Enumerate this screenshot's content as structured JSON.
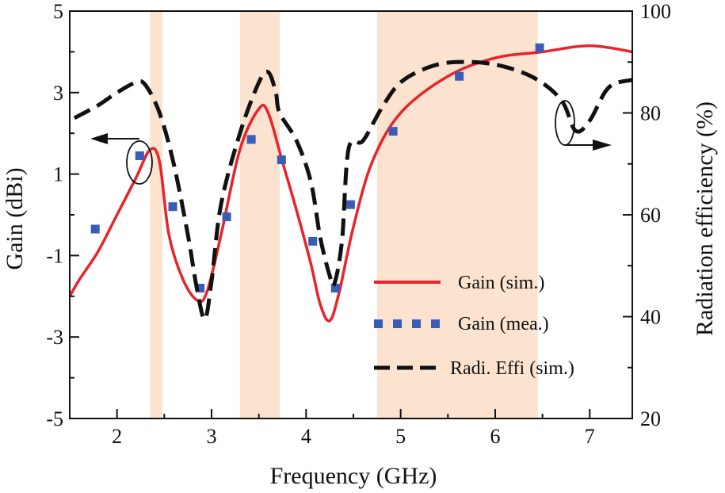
{
  "chart_data": {
    "type": "line",
    "title": "",
    "xlabel": "Frequency (GHz)",
    "ylabel": "Gain (dBi)",
    "y2label": "Radiation efficiency (%)",
    "xlim": [
      1.5,
      7.45
    ],
    "ylim": [
      -5,
      5
    ],
    "y2lim": [
      20,
      100
    ],
    "xticks": [
      "2",
      "3",
      "4",
      "5",
      "6",
      "7"
    ],
    "yticks": [
      "-5",
      "-3",
      "-1",
      "1",
      "3",
      "5"
    ],
    "y2ticks": [
      "20",
      "40",
      "60",
      "80",
      "100"
    ],
    "bands": [
      [
        2.35,
        2.48
      ],
      [
        3.3,
        3.72
      ],
      [
        4.75,
        6.45
      ]
    ],
    "band_color": "#fbe3cf",
    "series": [
      {
        "name": "Gain (sim.)",
        "axis": "left",
        "style": "solid",
        "color": "#e8232a",
        "x": [
          1.5,
          1.6,
          1.8,
          2.0,
          2.2,
          2.35,
          2.45,
          2.55,
          2.7,
          2.85,
          2.95,
          3.1,
          3.3,
          3.5,
          3.6,
          3.75,
          3.9,
          4.05,
          4.15,
          4.25,
          4.35,
          4.5,
          4.7,
          5.0,
          5.5,
          6.0,
          6.5,
          7.0,
          7.45
        ],
        "y": [
          -2.0,
          -1.6,
          -0.9,
          0.0,
          0.9,
          1.6,
          1.3,
          -0.5,
          -1.6,
          -2.1,
          -1.9,
          -0.5,
          1.6,
          2.6,
          2.5,
          1.3,
          0.1,
          -1.2,
          -2.2,
          -2.6,
          -1.9,
          -0.3,
          1.3,
          2.5,
          3.4,
          3.85,
          4.0,
          4.15,
          4.0
        ]
      },
      {
        "name": "Gain (mea.)",
        "axis": "left",
        "style": "square",
        "color": "#3b5bb8",
        "x": [
          1.77,
          2.24,
          2.59,
          2.88,
          3.16,
          3.42,
          3.74,
          4.07,
          4.31,
          4.47,
          4.92,
          5.62,
          6.47
        ],
        "y": [
          -0.35,
          1.45,
          0.2,
          -1.8,
          -0.05,
          1.85,
          1.35,
          -0.65,
          -1.8,
          0.25,
          2.05,
          3.4,
          4.1
        ]
      },
      {
        "name": "Radi. Effi (sim.)",
        "axis": "right",
        "style": "dashed",
        "color": "#111111",
        "x": [
          1.55,
          1.8,
          2.0,
          2.2,
          2.3,
          2.45,
          2.6,
          2.75,
          2.85,
          2.93,
          3.0,
          3.1,
          3.3,
          3.5,
          3.6,
          3.68,
          3.72,
          3.9,
          4.05,
          4.15,
          4.25,
          4.3,
          4.38,
          4.45,
          4.6,
          4.8,
          5.0,
          5.3,
          5.6,
          6.0,
          6.4,
          6.7,
          6.85,
          7.0,
          7.2,
          7.45
        ],
        "y": [
          79.0,
          81.5,
          84.0,
          86.0,
          85.5,
          80.0,
          70.0,
          56.0,
          45.0,
          39.5,
          47.0,
          62.0,
          76.0,
          86.0,
          88.0,
          84.0,
          80.0,
          74.5,
          66.5,
          55.5,
          48.0,
          46.5,
          55.0,
          73.0,
          74.5,
          81.0,
          86.0,
          89.0,
          90.0,
          89.5,
          87.0,
          82.5,
          76.5,
          78.5,
          85.0,
          86.5
        ]
      }
    ],
    "legend": {
      "position": "bottom-right",
      "items": [
        "Gain (sim.)",
        "Gain (mea.)",
        "Radi. Effi (sim.)"
      ]
    }
  }
}
